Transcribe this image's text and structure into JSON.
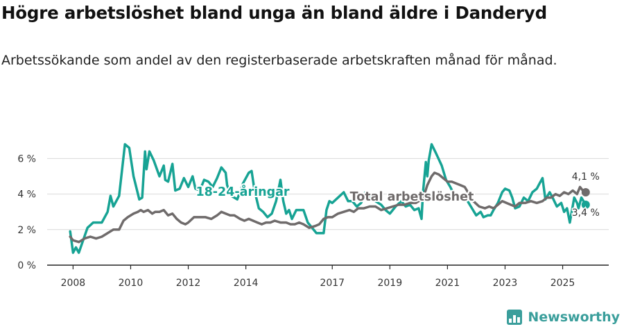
{
  "header": {
    "title": "Högre arbetslöshet bland unga än bland äldre i Danderyd",
    "subtitle": "Arbetssökande som andel av den registerbaserade arbetskraften månad för månad."
  },
  "branding": {
    "name": "Newsworthy",
    "logo_icon": "bar-chart-icon"
  },
  "chart_data": {
    "type": "line",
    "title": "Högre arbetslöshet bland unga än bland äldre i Danderyd",
    "subtitle": "Arbetssökande som andel av den registerbaserade arbetskraften månad för månad.",
    "xlabel": "",
    "ylabel": "",
    "x_ticks": [
      "2008",
      "2010",
      "2012",
      "2014",
      "2017",
      "2019",
      "2021",
      "2023",
      "2025"
    ],
    "y_ticks": [
      "0 %",
      "2 %",
      "4 %",
      "6 %"
    ],
    "ylim": [
      0,
      7.5
    ],
    "grid": true,
    "series": [
      {
        "name": "18-24-åringar",
        "label": "18-24-åringar",
        "color": "#17a394",
        "end_label": "3,4 %",
        "points": [
          [
            2007.9,
            1.9
          ],
          [
            2008.0,
            0.7
          ],
          [
            2008.1,
            1.0
          ],
          [
            2008.2,
            0.7
          ],
          [
            2008.35,
            1.4
          ],
          [
            2008.5,
            2.1
          ],
          [
            2008.7,
            2.4
          ],
          [
            2009.0,
            2.4
          ],
          [
            2009.2,
            3.0
          ],
          [
            2009.3,
            3.9
          ],
          [
            2009.4,
            3.3
          ],
          [
            2009.6,
            3.9
          ],
          [
            2009.8,
            6.8
          ],
          [
            2009.95,
            6.6
          ],
          [
            2010.1,
            5.0
          ],
          [
            2010.3,
            3.7
          ],
          [
            2010.4,
            3.8
          ],
          [
            2010.5,
            6.4
          ],
          [
            2010.55,
            5.4
          ],
          [
            2010.65,
            6.4
          ],
          [
            2010.8,
            5.9
          ],
          [
            2011.0,
            5.0
          ],
          [
            2011.15,
            5.6
          ],
          [
            2011.2,
            4.8
          ],
          [
            2011.3,
            4.7
          ],
          [
            2011.45,
            5.7
          ],
          [
            2011.55,
            4.2
          ],
          [
            2011.7,
            4.3
          ],
          [
            2011.85,
            4.9
          ],
          [
            2012.0,
            4.4
          ],
          [
            2012.15,
            5.0
          ],
          [
            2012.25,
            4.3
          ],
          [
            2012.4,
            4.2
          ],
          [
            2012.55,
            4.8
          ],
          [
            2012.7,
            4.7
          ],
          [
            2012.85,
            4.4
          ],
          [
            2013.0,
            4.9
          ],
          [
            2013.15,
            5.5
          ],
          [
            2013.3,
            5.2
          ],
          [
            2013.35,
            4.5
          ],
          [
            2013.5,
            3.9
          ],
          [
            2013.7,
            3.7
          ],
          [
            2013.9,
            4.6
          ],
          [
            2014.1,
            5.2
          ],
          [
            2014.2,
            5.3
          ],
          [
            2014.3,
            4.2
          ],
          [
            2014.45,
            3.2
          ],
          [
            2014.6,
            3.0
          ],
          [
            2014.75,
            2.7
          ],
          [
            2014.9,
            2.9
          ],
          [
            2015.05,
            3.6
          ],
          [
            2015.2,
            4.8
          ],
          [
            2015.3,
            3.6
          ],
          [
            2015.4,
            2.9
          ],
          [
            2015.5,
            3.1
          ],
          [
            2015.6,
            2.6
          ],
          [
            2015.75,
            3.1
          ],
          [
            2016.0,
            3.1
          ],
          [
            2016.15,
            2.4
          ],
          [
            2016.3,
            2.1
          ],
          [
            2016.45,
            1.8
          ],
          [
            2016.6,
            1.8
          ],
          [
            2016.7,
            1.8
          ],
          [
            2016.8,
            3.1
          ],
          [
            2016.9,
            3.6
          ],
          [
            2017.0,
            3.5
          ],
          [
            2017.2,
            3.8
          ],
          [
            2017.4,
            4.1
          ],
          [
            2017.55,
            3.6
          ],
          [
            2017.7,
            3.6
          ],
          [
            2017.85,
            3.3
          ],
          [
            2018.0,
            3.5
          ],
          [
            2018.15,
            4.1
          ],
          [
            2018.3,
            3.9
          ],
          [
            2018.5,
            3.6
          ],
          [
            2018.7,
            3.4
          ],
          [
            2018.85,
            3.1
          ],
          [
            2019.0,
            2.9
          ],
          [
            2019.2,
            3.3
          ],
          [
            2019.4,
            3.6
          ],
          [
            2019.55,
            3.3
          ],
          [
            2019.7,
            3.4
          ],
          [
            2019.85,
            3.1
          ],
          [
            2020.0,
            3.2
          ],
          [
            2020.1,
            2.6
          ],
          [
            2020.15,
            4.1
          ],
          [
            2020.25,
            5.8
          ],
          [
            2020.3,
            5.0
          ],
          [
            2020.35,
            5.9
          ],
          [
            2020.45,
            6.8
          ],
          [
            2020.6,
            6.3
          ],
          [
            2020.8,
            5.6
          ],
          [
            2020.95,
            4.8
          ],
          [
            2021.1,
            4.4
          ],
          [
            2021.25,
            3.9
          ],
          [
            2021.4,
            3.8
          ],
          [
            2021.55,
            4.0
          ],
          [
            2021.7,
            3.6
          ],
          [
            2021.85,
            3.2
          ],
          [
            2022.0,
            2.8
          ],
          [
            2022.15,
            3.0
          ],
          [
            2022.25,
            2.7
          ],
          [
            2022.4,
            2.8
          ],
          [
            2022.5,
            2.8
          ],
          [
            2022.6,
            3.1
          ],
          [
            2022.75,
            3.5
          ],
          [
            2022.9,
            4.1
          ],
          [
            2023.0,
            4.3
          ],
          [
            2023.15,
            4.2
          ],
          [
            2023.25,
            3.8
          ],
          [
            2023.35,
            3.2
          ],
          [
            2023.5,
            3.3
          ],
          [
            2023.65,
            3.8
          ],
          [
            2023.8,
            3.6
          ],
          [
            2023.95,
            4.1
          ],
          [
            2024.1,
            4.3
          ],
          [
            2024.2,
            4.6
          ],
          [
            2024.3,
            4.9
          ],
          [
            2024.4,
            3.7
          ],
          [
            2024.55,
            4.1
          ],
          [
            2024.65,
            3.8
          ],
          [
            2024.8,
            3.3
          ],
          [
            2024.95,
            3.5
          ],
          [
            2025.05,
            3.0
          ],
          [
            2025.15,
            3.2
          ],
          [
            2025.25,
            2.4
          ],
          [
            2025.4,
            3.8
          ],
          [
            2025.5,
            3.5
          ],
          [
            2025.55,
            3.2
          ],
          [
            2025.65,
            3.8
          ],
          [
            2025.8,
            3.4
          ]
        ]
      },
      {
        "name": "Total arbetslöshet",
        "label": "Total arbetslöshet",
        "color": "#6f6b6b",
        "end_label": "4,1 %",
        "points": [
          [
            2007.9,
            1.6
          ],
          [
            2008.0,
            1.4
          ],
          [
            2008.2,
            1.3
          ],
          [
            2008.4,
            1.5
          ],
          [
            2008.6,
            1.6
          ],
          [
            2008.8,
            1.5
          ],
          [
            2009.0,
            1.6
          ],
          [
            2009.2,
            1.8
          ],
          [
            2009.4,
            2.0
          ],
          [
            2009.6,
            2.0
          ],
          [
            2009.75,
            2.5
          ],
          [
            2009.9,
            2.7
          ],
          [
            2010.1,
            2.9
          ],
          [
            2010.25,
            3.0
          ],
          [
            2010.35,
            3.1
          ],
          [
            2010.45,
            3.0
          ],
          [
            2010.6,
            3.1
          ],
          [
            2010.75,
            2.9
          ],
          [
            2010.85,
            3.0
          ],
          [
            2011.0,
            3.0
          ],
          [
            2011.15,
            3.1
          ],
          [
            2011.3,
            2.8
          ],
          [
            2011.45,
            2.9
          ],
          [
            2011.6,
            2.6
          ],
          [
            2011.75,
            2.4
          ],
          [
            2011.9,
            2.3
          ],
          [
            2012.0,
            2.4
          ],
          [
            2012.2,
            2.7
          ],
          [
            2012.4,
            2.7
          ],
          [
            2012.6,
            2.7
          ],
          [
            2012.8,
            2.6
          ],
          [
            2013.0,
            2.8
          ],
          [
            2013.15,
            3.0
          ],
          [
            2013.3,
            2.9
          ],
          [
            2013.45,
            2.8
          ],
          [
            2013.6,
            2.8
          ],
          [
            2013.8,
            2.6
          ],
          [
            2013.95,
            2.5
          ],
          [
            2014.1,
            2.6
          ],
          [
            2014.25,
            2.5
          ],
          [
            2014.4,
            2.4
          ],
          [
            2014.55,
            2.3
          ],
          [
            2014.7,
            2.4
          ],
          [
            2014.85,
            2.4
          ],
          [
            2015.0,
            2.5
          ],
          [
            2015.2,
            2.4
          ],
          [
            2015.4,
            2.4
          ],
          [
            2015.55,
            2.3
          ],
          [
            2015.7,
            2.3
          ],
          [
            2015.85,
            2.4
          ],
          [
            2016.0,
            2.3
          ],
          [
            2016.2,
            2.1
          ],
          [
            2016.4,
            2.2
          ],
          [
            2016.55,
            2.3
          ],
          [
            2016.7,
            2.6
          ],
          [
            2016.85,
            2.7
          ],
          [
            2017.0,
            2.7
          ],
          [
            2017.2,
            2.9
          ],
          [
            2017.4,
            3.0
          ],
          [
            2017.6,
            3.1
          ],
          [
            2017.75,
            3.0
          ],
          [
            2017.9,
            3.2
          ],
          [
            2018.1,
            3.2
          ],
          [
            2018.3,
            3.3
          ],
          [
            2018.5,
            3.3
          ],
          [
            2018.7,
            3.1
          ],
          [
            2018.9,
            3.2
          ],
          [
            2019.1,
            3.3
          ],
          [
            2019.3,
            3.4
          ],
          [
            2019.5,
            3.4
          ],
          [
            2019.7,
            3.5
          ],
          [
            2019.9,
            3.5
          ],
          [
            2020.1,
            3.7
          ],
          [
            2020.2,
            4.0
          ],
          [
            2020.3,
            4.5
          ],
          [
            2020.45,
            5.0
          ],
          [
            2020.55,
            5.2
          ],
          [
            2020.7,
            5.1
          ],
          [
            2020.85,
            4.9
          ],
          [
            2021.0,
            4.7
          ],
          [
            2021.15,
            4.7
          ],
          [
            2021.3,
            4.6
          ],
          [
            2021.45,
            4.5
          ],
          [
            2021.6,
            4.4
          ],
          [
            2021.75,
            4.0
          ],
          [
            2021.9,
            3.6
          ],
          [
            2022.1,
            3.3
          ],
          [
            2022.3,
            3.2
          ],
          [
            2022.45,
            3.3
          ],
          [
            2022.6,
            3.2
          ],
          [
            2022.75,
            3.4
          ],
          [
            2022.9,
            3.6
          ],
          [
            2023.05,
            3.5
          ],
          [
            2023.2,
            3.4
          ],
          [
            2023.35,
            3.3
          ],
          [
            2023.5,
            3.5
          ],
          [
            2023.7,
            3.5
          ],
          [
            2023.9,
            3.6
          ],
          [
            2024.1,
            3.5
          ],
          [
            2024.3,
            3.6
          ],
          [
            2024.45,
            3.8
          ],
          [
            2024.6,
            3.8
          ],
          [
            2024.75,
            4.0
          ],
          [
            2024.9,
            3.9
          ],
          [
            2025.05,
            4.1
          ],
          [
            2025.2,
            4.0
          ],
          [
            2025.35,
            4.2
          ],
          [
            2025.5,
            4.0
          ],
          [
            2025.6,
            4.4
          ],
          [
            2025.7,
            4.2
          ],
          [
            2025.8,
            4.1
          ]
        ]
      }
    ]
  }
}
